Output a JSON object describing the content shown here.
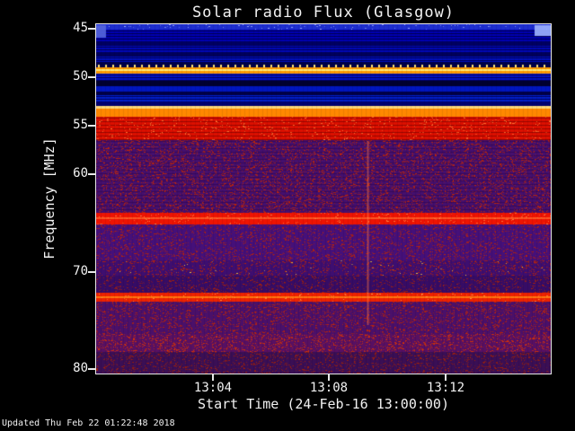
{
  "title": "Solar radio Flux (Glasgow)",
  "axes": {
    "ylabel": "Frequency [MHz]",
    "xlabel": "Start Time (24-Feb-16 13:00:00)"
  },
  "footer": {
    "updated": "Updated Thu Feb 22 01:22:48 2018"
  },
  "chart_data": {
    "type": "heatmap",
    "title": "Solar radio Flux (Glasgow)",
    "xlabel": "Start Time (24-Feb-16 13:00:00)",
    "ylabel": "Frequency [MHz]",
    "x_start_time": "13:00:00",
    "x_date": "24-Feb-16",
    "x_range_minutes": [
      0,
      15.6
    ],
    "x_ticks": [
      {
        "minute": 4,
        "label": "13:04"
      },
      {
        "minute": 8,
        "label": "13:08"
      },
      {
        "minute": 12,
        "label": "13:12"
      }
    ],
    "y_range_mhz": [
      44.5,
      80.5
    ],
    "y_ticks": [
      45,
      50,
      55,
      60,
      70,
      80
    ],
    "grid": false,
    "legend": "none",
    "background": "#000000",
    "frame_color": "#e8e8e8",
    "bands": [
      {
        "f0": 44.5,
        "f1": 45.1,
        "color": "#1f2fd0",
        "speckle": "#9fb0ff",
        "density": 0.06
      },
      {
        "f0": 45.1,
        "f1": 46.3,
        "color": "#0000b4",
        "stripe": "#000050"
      },
      {
        "f0": 46.3,
        "f1": 46.7,
        "color": "#000060"
      },
      {
        "f0": 46.7,
        "f1": 47.4,
        "color": "#0008b8",
        "stripe": "#000050"
      },
      {
        "f0": 47.4,
        "f1": 47.8,
        "color": "#00005a"
      },
      {
        "f0": 47.8,
        "f1": 48.4,
        "color": "#0010c0",
        "stripe": "#000050"
      },
      {
        "f0": 48.4,
        "f1": 48.9,
        "color": "#000048"
      },
      {
        "f0": 48.9,
        "f1": 49.6,
        "color": "#ff9a00",
        "core": "#ffe97a",
        "picket": true
      },
      {
        "f0": 49.6,
        "f1": 50.3,
        "color": "#0014c8",
        "stripe": "#000060"
      },
      {
        "f0": 50.3,
        "f1": 50.9,
        "color": "#000030"
      },
      {
        "f0": 50.9,
        "f1": 51.4,
        "color": "#0016c0"
      },
      {
        "f0": 51.4,
        "f1": 51.8,
        "color": "#000048"
      },
      {
        "f0": 51.8,
        "f1": 52.5,
        "color": "#0020cc",
        "stripe": "#000058"
      },
      {
        "f0": 52.5,
        "f1": 52.9,
        "color": "#000070"
      },
      {
        "f0": 52.9,
        "f1": 53.2,
        "color": "#ffd977"
      },
      {
        "f0": 53.2,
        "f1": 54.0,
        "color": "#ff8800"
      },
      {
        "f0": 54.0,
        "f1": 56.4,
        "color": "#dd1000",
        "stripe": "#990700",
        "stripe_gap": 4,
        "speckle": "#ff7733",
        "density": 0.1
      },
      {
        "f0": 56.4,
        "f1": 63.9,
        "color": "#45106e",
        "stripe": "#38095c",
        "stripe_gap": 4,
        "speckle": "#c32605",
        "density": 0.34
      },
      {
        "f0": 63.9,
        "f1": 65.1,
        "color": "#ee1403",
        "core": "#ff5522",
        "speckle": "#ff8844",
        "density": 0.08
      },
      {
        "f0": 65.1,
        "f1": 68.8,
        "color": "#45107a",
        "speckle": "#bb2408",
        "density": 0.3
      },
      {
        "f0": 68.8,
        "f1": 70.4,
        "color": "#3e0e70",
        "speckle": "#bb2408",
        "density": 0.28,
        "speckle2": "#ffcc33",
        "density2": 0.012
      },
      {
        "f0": 70.4,
        "f1": 72.2,
        "color": "#360c66",
        "speckle": "#aa2208",
        "density": 0.26
      },
      {
        "f0": 72.2,
        "f1": 73.1,
        "color": "#ee2200",
        "core": "#ff7711",
        "speckle": "#ff9944",
        "density": 0.06
      },
      {
        "f0": 73.1,
        "f1": 76.4,
        "color": "#4a106a",
        "speckle": "#c32605",
        "density": 0.32
      },
      {
        "f0": 76.4,
        "f1": 78.3,
        "color": "#571063",
        "speckle": "#d93304",
        "density": 0.36
      },
      {
        "f0": 78.3,
        "f1": 80.5,
        "color": "#3a0f55",
        "speckle": "#a82204",
        "density": 0.27
      }
    ],
    "edge_patches": [
      {
        "x0_frac": 0.965,
        "x1_frac": 1.0,
        "f0": 44.6,
        "f1": 45.7,
        "color": "#9fb4ff"
      },
      {
        "x0_frac": 0.0,
        "x1_frac": 0.022,
        "f0": 44.6,
        "f1": 45.9,
        "color": "#5566dd"
      }
    ],
    "vertical_burst": {
      "minute": 9.3,
      "f_start": 56.5,
      "f_end": 75.5,
      "color": "#ff7744",
      "alpha": 0.35
    }
  }
}
